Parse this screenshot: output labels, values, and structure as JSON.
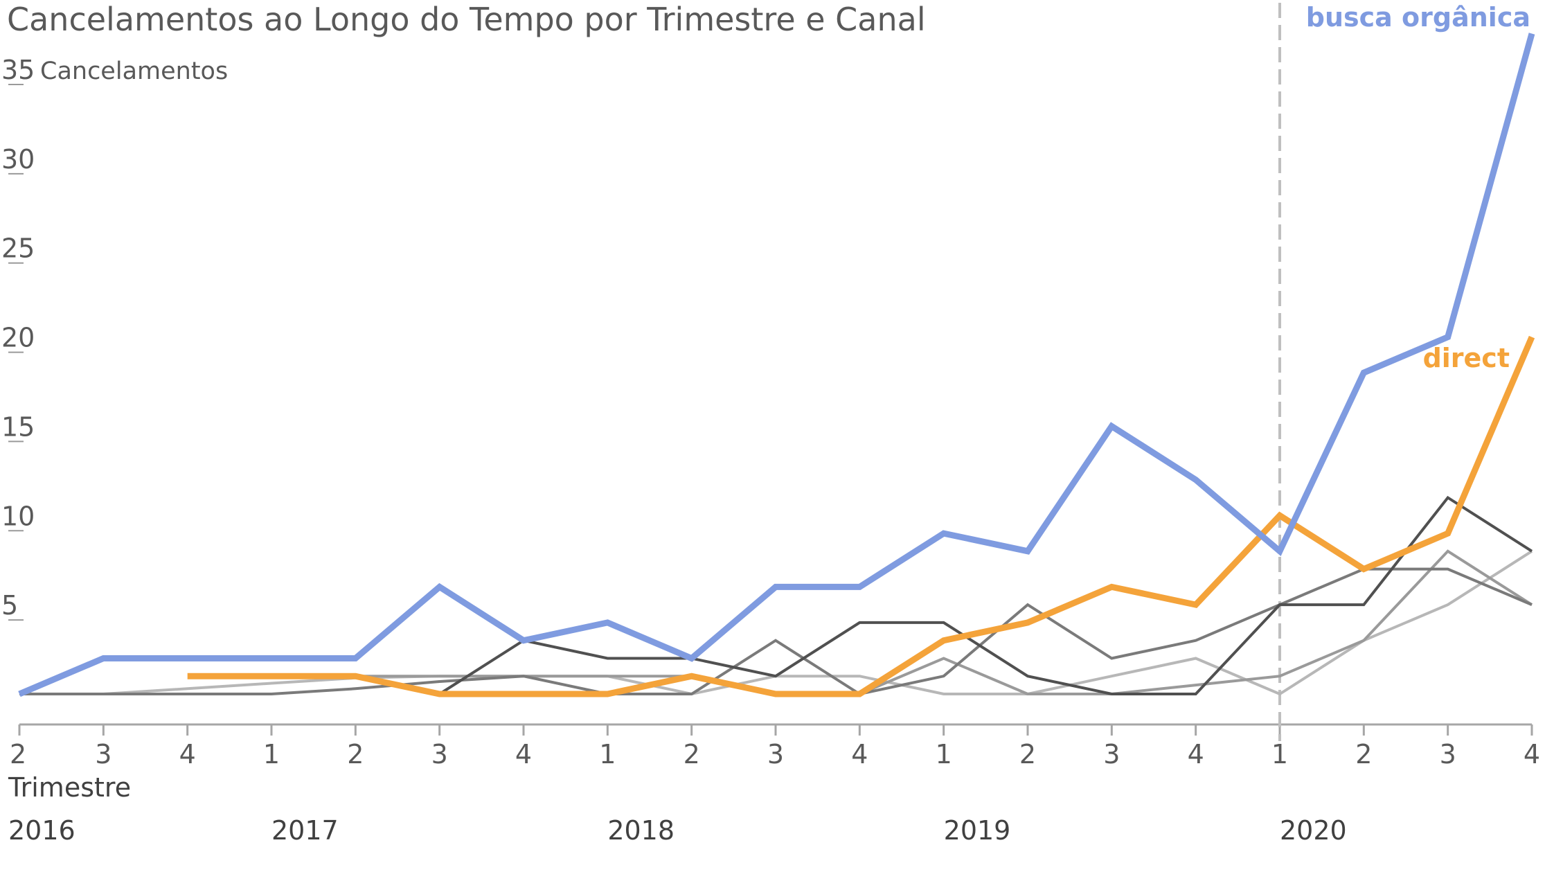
{
  "chart_data": {
    "type": "line",
    "title": "Cancelamentos ao Longo do Tempo por Trimestre e Canal",
    "ylabel": "Cancelamentos",
    "xlabel": "Trimestre",
    "ylim": [
      0,
      35
    ],
    "yticks": [
      5,
      10,
      15,
      20,
      25,
      30,
      35
    ],
    "quarters": [
      "2",
      "3",
      "4",
      "1",
      "2",
      "3",
      "4",
      "1",
      "2",
      "3",
      "4",
      "1",
      "2",
      "3",
      "4",
      "1",
      "2",
      "3",
      "4"
    ],
    "years": [
      {
        "label": "2016",
        "start_index": 0
      },
      {
        "label": "2017",
        "start_index": 3
      },
      {
        "label": "2018",
        "start_index": 7
      },
      {
        "label": "2019",
        "start_index": 11
      },
      {
        "label": "2020",
        "start_index": 15
      }
    ],
    "marker_index": 15,
    "series": [
      {
        "name": "",
        "color": "#b7b7b7",
        "width": 4,
        "values": [
          0,
          0,
          0.3,
          0.6,
          0.9,
          1.0,
          1.0,
          1.0,
          0,
          1.0,
          1.0,
          0,
          0,
          1.0,
          2.0,
          0,
          3.0,
          5.0,
          8.0
        ]
      },
      {
        "name": "",
        "color": "#9a9a9a",
        "width": 4,
        "values": [
          0,
          0,
          null,
          null,
          1.0,
          1.0,
          1.0,
          1.0,
          1.0,
          0,
          0,
          2.0,
          0,
          0,
          0.5,
          1.0,
          3.0,
          8.0,
          5.0
        ]
      },
      {
        "name": "",
        "color": "#7a7a7a",
        "width": 4,
        "values": [
          0,
          0,
          0,
          0,
          0.3,
          0.7,
          1.0,
          0,
          0,
          3.0,
          0,
          1.0,
          5.0,
          2.0,
          3.0,
          5.0,
          7.0,
          7.0,
          5.0
        ]
      },
      {
        "name": "",
        "color": "#505050",
        "width": 4,
        "values": [
          null,
          null,
          null,
          null,
          1.0,
          0,
          3.0,
          2.0,
          2.0,
          1.0,
          4.0,
          4.0,
          1.0,
          0,
          0,
          5.0,
          5.0,
          11.0,
          8.0
        ]
      },
      {
        "name": "direct",
        "color": "#f4a33a",
        "width": 9,
        "label_color": "#f4a33a",
        "values": [
          null,
          null,
          1.0,
          1.0,
          1.0,
          0,
          0,
          0,
          1.0,
          0,
          0,
          3.0,
          4.0,
          6.0,
          5.0,
          10.0,
          7.0,
          9.0,
          20.0
        ]
      },
      {
        "name": "busca orgânica",
        "color": "#7f9be0",
        "width": 9,
        "label_color": "#7f9be0",
        "values": [
          0,
          2.0,
          2.0,
          2.0,
          2.0,
          6.0,
          3.0,
          4.0,
          2.0,
          6.0,
          6.0,
          9.0,
          8.0,
          15.0,
          12.0,
          8.0,
          18.0,
          20.0,
          37.0
        ]
      }
    ]
  }
}
